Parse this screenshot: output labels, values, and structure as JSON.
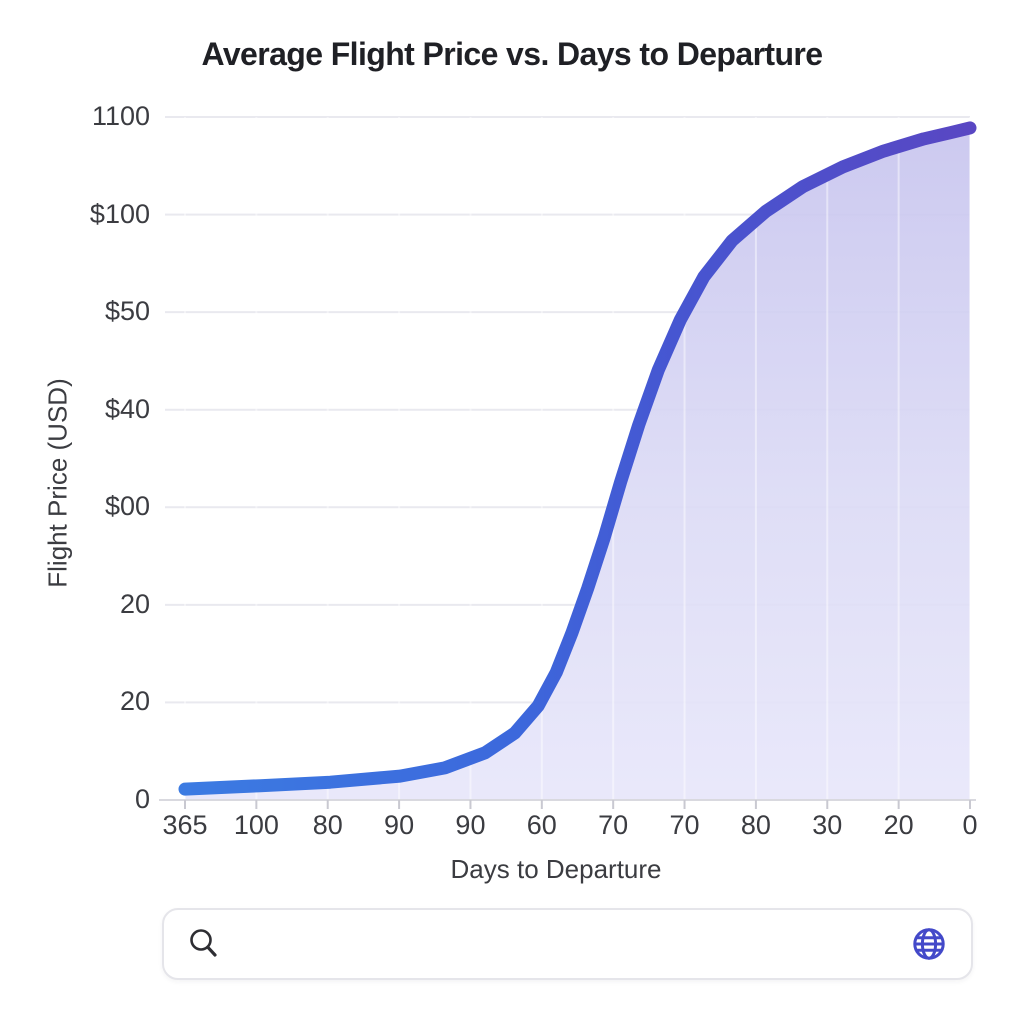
{
  "chart_data": {
    "type": "area",
    "title": "Average Flight Price vs. Days to Departure",
    "xlabel": "Days to Departure",
    "ylabel": "Flight Price (USD)",
    "x_tick_labels": [
      "365",
      "100",
      "80",
      "90",
      "90",
      "60",
      "70",
      "70",
      "80",
      "30",
      "20",
      "0"
    ],
    "y_tick_labels": [
      "1100",
      "$100",
      "$50",
      "$40",
      "$00",
      "20",
      "20",
      "0"
    ],
    "grid": true,
    "legend": "none",
    "point_space": "fractions of plot area: x 0=left tick(365) to 1=right tick(0), y 0=bottom axis to 1=top gridline",
    "series": [
      {
        "name": "Average Flight Price",
        "shape": "sigmoid rising left-to-right",
        "line_width": 13,
        "line_gradient": [
          "#3C7BE2",
          "#3C68DC",
          "#4656D1",
          "#5947C3"
        ],
        "fill_gradient": [
          "#C6C3EE",
          "#DBDAF5",
          "#E7E6FA"
        ],
        "points_frac": [
          [
            0.0,
            0.016
          ],
          [
            0.096,
            0.021
          ],
          [
            0.185,
            0.026
          ],
          [
            0.274,
            0.035
          ],
          [
            0.331,
            0.047
          ],
          [
            0.382,
            0.069
          ],
          [
            0.42,
            0.098
          ],
          [
            0.45,
            0.138
          ],
          [
            0.473,
            0.187
          ],
          [
            0.493,
            0.245
          ],
          [
            0.513,
            0.31
          ],
          [
            0.534,
            0.384
          ],
          [
            0.555,
            0.466
          ],
          [
            0.578,
            0.549
          ],
          [
            0.603,
            0.63
          ],
          [
            0.631,
            0.703
          ],
          [
            0.661,
            0.766
          ],
          [
            0.697,
            0.819
          ],
          [
            0.74,
            0.862
          ],
          [
            0.787,
            0.898
          ],
          [
            0.838,
            0.927
          ],
          [
            0.89,
            0.95
          ],
          [
            0.941,
            0.968
          ],
          [
            0.975,
            0.977
          ],
          [
            1.0,
            0.984
          ]
        ]
      }
    ],
    "colors": {
      "gridline": "#E9E9EF",
      "axis_line": "#D9D9DF",
      "tick_mark": "#C9C9D1",
      "tick_label": "#3B3C41",
      "title_text": "#1F2025"
    }
  },
  "search_bar": {
    "value": "",
    "placeholder": "",
    "search_icon_color": "#2E2E33",
    "globe_icon_color": "#4349C9"
  }
}
